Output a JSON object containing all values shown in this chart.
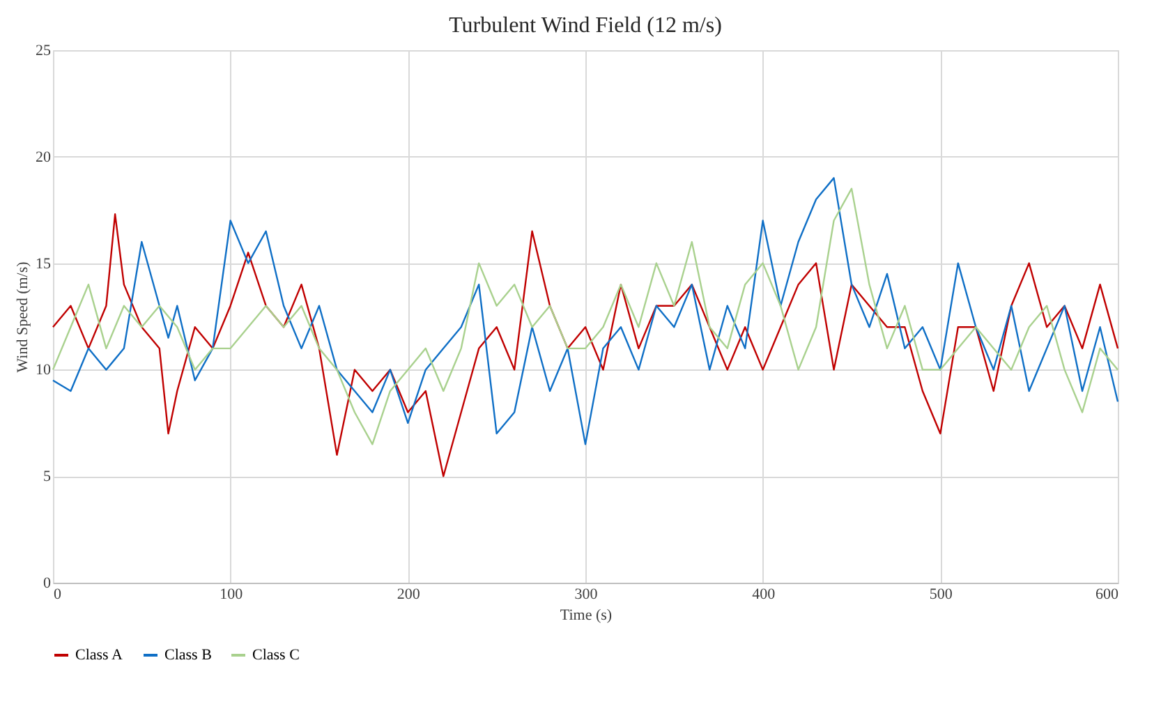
{
  "chart_data": {
    "type": "line",
    "title": "Turbulent Wind Field (12 m/s)",
    "xlabel": "Time (s)",
    "ylabel": "Wind Speed (m/s)",
    "x": [
      0,
      10,
      20,
      30,
      35,
      40,
      50,
      60,
      65,
      70,
      80,
      90,
      100,
      110,
      120,
      130,
      140,
      150,
      160,
      170,
      180,
      190,
      200,
      210,
      220,
      230,
      240,
      250,
      260,
      270,
      280,
      290,
      300,
      310,
      320,
      330,
      340,
      350,
      360,
      370,
      380,
      390,
      400,
      410,
      420,
      430,
      440,
      450,
      460,
      470,
      480,
      490,
      500,
      510,
      520,
      530,
      540,
      550,
      560,
      570,
      580,
      590,
      600
    ],
    "series": [
      {
        "name": "Class A",
        "color": "#c00000",
        "values": [
          12,
          13,
          11,
          13,
          17.3,
          14,
          12,
          11,
          7,
          9,
          12,
          11,
          13,
          15.5,
          13,
          12,
          14,
          11,
          6,
          10,
          9,
          10,
          8,
          9,
          5,
          8,
          11,
          12,
          10,
          16.5,
          13,
          11,
          12,
          10,
          14,
          11,
          13,
          13,
          14,
          12,
          10,
          12,
          10,
          12,
          14,
          15,
          10,
          14,
          13,
          12,
          12,
          9,
          7,
          12,
          12,
          9,
          13,
          15,
          12,
          13,
          11,
          14,
          11
        ]
      },
      {
        "name": "Class B",
        "color": "#0f6fc6",
        "values": [
          9.5,
          9,
          11,
          10,
          10.5,
          11,
          16,
          13,
          11.5,
          13,
          9.5,
          11,
          17,
          15,
          16.5,
          13,
          11,
          13,
          10,
          9,
          8,
          10,
          7.5,
          10,
          11,
          12,
          14,
          7,
          8,
          12,
          9,
          11,
          6.5,
          11,
          12,
          10,
          13,
          12,
          14,
          10,
          13,
          11,
          17,
          13,
          16,
          18,
          19,
          14,
          12,
          14.5,
          11,
          12,
          10,
          15,
          12,
          10,
          13,
          9,
          11,
          13,
          9,
          12,
          8.5
        ]
      },
      {
        "name": "Class C",
        "color": "#a9d18e",
        "values": [
          10,
          12,
          14,
          11,
          12,
          13,
          12,
          13,
          12.5,
          12,
          10,
          11,
          11,
          12,
          13,
          12,
          13,
          11,
          10,
          8,
          6.5,
          9,
          10,
          11,
          9,
          11,
          15,
          13,
          14,
          12,
          13,
          11,
          11,
          12,
          14,
          12,
          15,
          13,
          16,
          12,
          11,
          14,
          15,
          13,
          10,
          12,
          17,
          18.5,
          14,
          11,
          13,
          10,
          10,
          11,
          12,
          11,
          10,
          12,
          13,
          10,
          8,
          11,
          10
        ]
      }
    ],
    "xlim": [
      0,
      600
    ],
    "xticks": [
      0,
      100,
      200,
      300,
      400,
      500,
      600
    ],
    "ylim": [
      0,
      25
    ],
    "yticks": [
      0,
      5,
      10,
      15,
      20,
      25
    ],
    "grid": true,
    "legend": "bottom",
    "marker": "none",
    "line_style": "solid"
  }
}
